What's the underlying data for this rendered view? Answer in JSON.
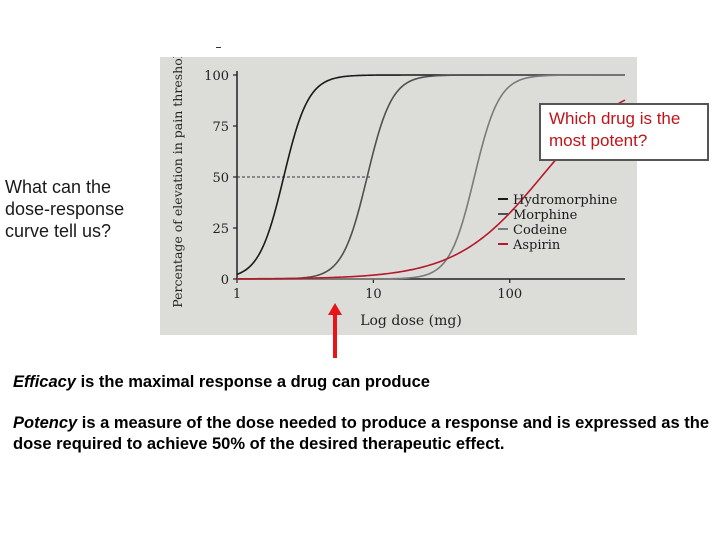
{
  "side_question": [
    "What can the",
    "dose-response",
    "curve tell us?"
  ],
  "callout": [
    "Which drug is the",
    "most potent?"
  ],
  "definitions": {
    "efficacy_term": "Efficacy",
    "efficacy_text": " is the maximal response a drug can produce",
    "potency_term": "Potency",
    "potency_text": " is a measure of the dose needed to produce a response and is expressed as the dose required to achieve 50% of the desired therapeutic effect."
  },
  "colors": {
    "callout_text": "#c0141a",
    "pointer": "#e8141a",
    "panel_background": "#dcdcd8"
  },
  "chart_data": {
    "type": "line",
    "xlabel": "Log dose (mg)",
    "ylabel": "Percentage of elevation in pain threshold",
    "x_scale": "log",
    "xlim": [
      1,
      700
    ],
    "ylim": [
      0,
      100
    ],
    "x_ticks": [
      {
        "value": 1,
        "label": "1"
      },
      {
        "value": 10,
        "label": "10"
      },
      {
        "value": 100,
        "label": "100"
      }
    ],
    "y_ticks": [
      {
        "value": 0,
        "label": "0"
      },
      {
        "value": 25,
        "label": "25"
      },
      {
        "value": 50,
        "label": "50"
      },
      {
        "value": 75,
        "label": "75"
      },
      {
        "value": 100,
        "label": "100"
      }
    ],
    "reference_line": {
      "y": 50
    },
    "legend_position": "right",
    "series": [
      {
        "name": "Hydromorphine",
        "color": "#1a1a1a",
        "ec50": 2.2,
        "steepness": 11
      },
      {
        "name": "Morphine",
        "color": "#505050",
        "ec50": 9,
        "steepness": 11
      },
      {
        "name": "Codeine",
        "color": "#7a7a7a",
        "ec50": 55,
        "steepness": 11
      },
      {
        "name": "Aspirin",
        "color": "#b5192a",
        "ec50": 170,
        "steepness": 3.2
      }
    ]
  }
}
